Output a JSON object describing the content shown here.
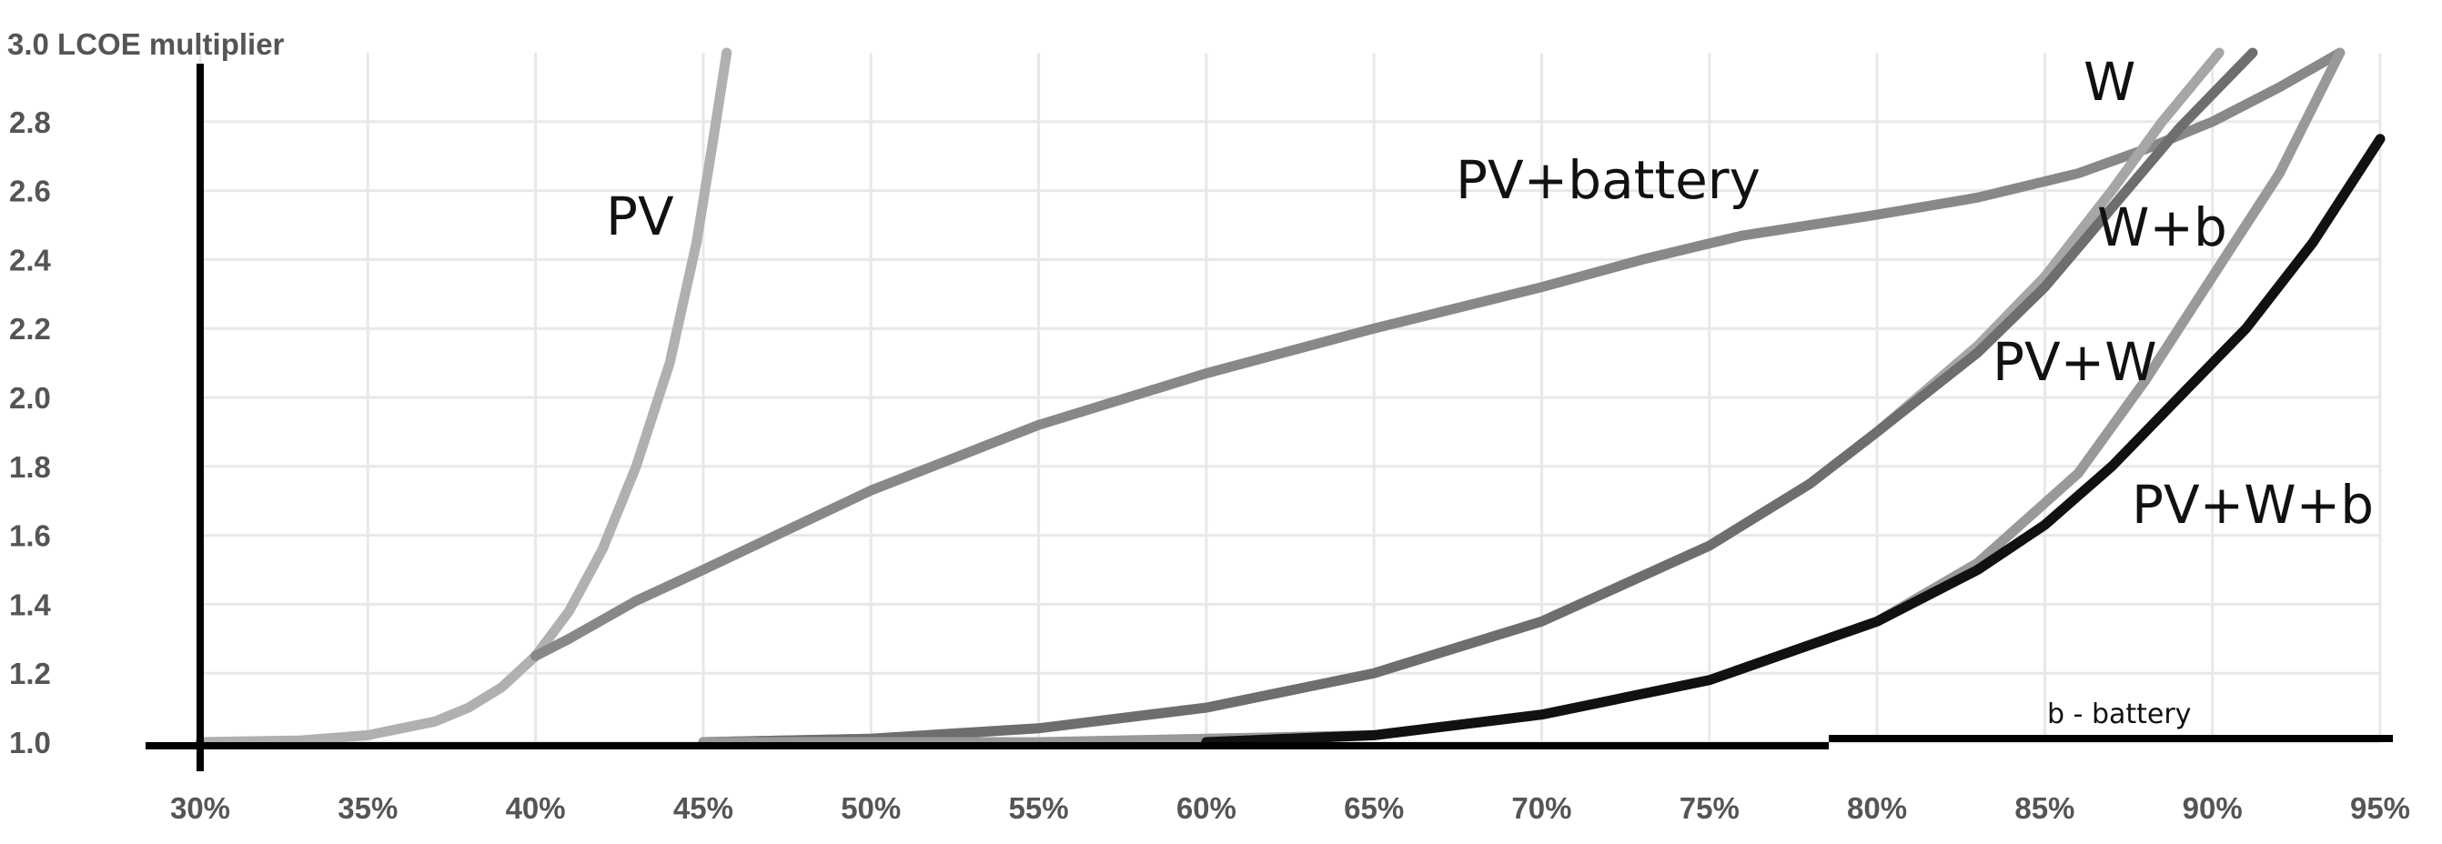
{
  "chart_data": {
    "type": "line",
    "title": "",
    "ylabel": "3.0 LCOE multiplier",
    "xlabel": "",
    "x_ticks": [
      "30%",
      "35%",
      "40%",
      "45%",
      "50%",
      "55%",
      "60%",
      "65%",
      "70%",
      "75%",
      "80%",
      "85%",
      "90%",
      "95%"
    ],
    "y_ticks": [
      "1.0",
      "1.2",
      "1.4",
      "1.6",
      "1.8",
      "2.0",
      "2.2",
      "2.4",
      "2.6",
      "2.8"
    ],
    "xlim": [
      30,
      95
    ],
    "ylim": [
      1.0,
      3.0
    ],
    "grid": true,
    "note": "b - battery",
    "series": [
      {
        "name": "PV",
        "color": "#b0b0b0",
        "x": [
          30,
          33,
          35,
          37,
          38,
          39,
          40,
          41,
          42,
          43,
          44,
          44.8,
          45.3,
          45.7
        ],
        "y": [
          1.0,
          1.005,
          1.02,
          1.06,
          1.1,
          1.16,
          1.25,
          1.38,
          1.56,
          1.8,
          2.1,
          2.45,
          2.75,
          3.0
        ]
      },
      {
        "name": "PV+battery",
        "color": "#888888",
        "x": [
          40,
          41,
          43,
          45,
          50,
          55,
          60,
          65,
          70,
          73,
          76,
          80,
          83,
          86,
          88,
          90,
          92,
          93.8
        ],
        "y": [
          1.25,
          1.3,
          1.41,
          1.5,
          1.73,
          1.92,
          2.07,
          2.2,
          2.32,
          2.4,
          2.47,
          2.53,
          2.58,
          2.65,
          2.72,
          2.8,
          2.9,
          3.0
        ]
      },
      {
        "name": "W",
        "color": "#a6a6a6",
        "x": [
          45,
          50,
          55,
          60,
          65,
          70,
          75,
          78,
          80,
          83,
          85,
          87,
          88.5,
          90.2
        ],
        "y": [
          1.0,
          1.01,
          1.04,
          1.1,
          1.2,
          1.35,
          1.57,
          1.75,
          1.9,
          2.15,
          2.35,
          2.6,
          2.8,
          3.0
        ]
      },
      {
        "name": "W+b",
        "color": "#6e6e6e",
        "x": [
          45,
          50,
          55,
          60,
          65,
          70,
          75,
          78,
          80,
          83,
          85,
          87,
          89,
          91.2
        ],
        "y": [
          1.0,
          1.01,
          1.04,
          1.1,
          1.2,
          1.35,
          1.57,
          1.75,
          1.9,
          2.13,
          2.32,
          2.55,
          2.78,
          3.0
        ]
      },
      {
        "name": "PV+W",
        "color": "#999999",
        "x": [
          45,
          55,
          65,
          70,
          75,
          80,
          83,
          86,
          88,
          90,
          92,
          93.8
        ],
        "y": [
          1.0,
          1.0,
          1.02,
          1.08,
          1.18,
          1.35,
          1.52,
          1.78,
          2.05,
          2.35,
          2.65,
          3.0
        ]
      },
      {
        "name": "PV+W+b",
        "color": "#111111",
        "x": [
          60,
          65,
          70,
          75,
          80,
          83,
          85,
          87,
          89,
          91,
          93,
          95
        ],
        "y": [
          1.0,
          1.02,
          1.08,
          1.18,
          1.35,
          1.5,
          1.63,
          1.8,
          2.0,
          2.2,
          2.45,
          2.75
        ]
      }
    ]
  }
}
